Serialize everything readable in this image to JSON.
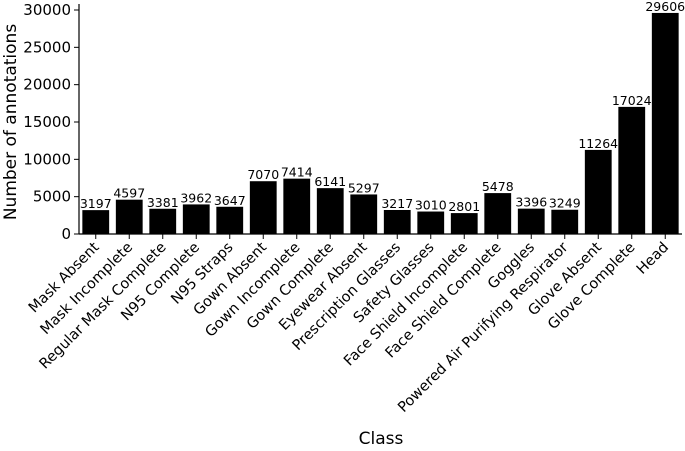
{
  "chart_data": {
    "type": "bar",
    "categories": [
      "Mask Absent",
      "Mask Incomplete",
      "Regular Mask Complete",
      "N95 Complete",
      "N95 Straps",
      "Gown Absent",
      "Gown Incomplete",
      "Gown Complete",
      "Eyewear Absent",
      "Prescription Glasses",
      "Safety Glasses",
      "Face Shield Incomplete",
      "Face Shield Complete",
      "Goggles",
      "Powered Air Purifying Respirator",
      "Glove Absent",
      "Glove Complete",
      "Head"
    ],
    "values": [
      3197,
      4597,
      3381,
      3962,
      3647,
      7070,
      7414,
      6141,
      5297,
      3217,
      3010,
      2801,
      5478,
      3396,
      3249,
      11264,
      17024,
      29606
    ],
    "value_labels": [
      "3197",
      "4597",
      "3381",
      "3962",
      "3647",
      "7070",
      "7414",
      "6141",
      "5297",
      "3217",
      "3010",
      "2801",
      "5478",
      "3396",
      "3249",
      "11264",
      "17024",
      "29606"
    ],
    "xlabel": "Class",
    "ylabel": "Number of annotations",
    "ylim": [
      0,
      30000
    ],
    "yticks": [
      0,
      5000,
      10000,
      15000,
      20000,
      25000,
      30000
    ],
    "ytick_labels": [
      "0",
      "5000",
      "10000",
      "15000",
      "20000",
      "25000",
      "30000"
    ],
    "bar_color": "#000000",
    "grid": false,
    "legend": "none"
  }
}
